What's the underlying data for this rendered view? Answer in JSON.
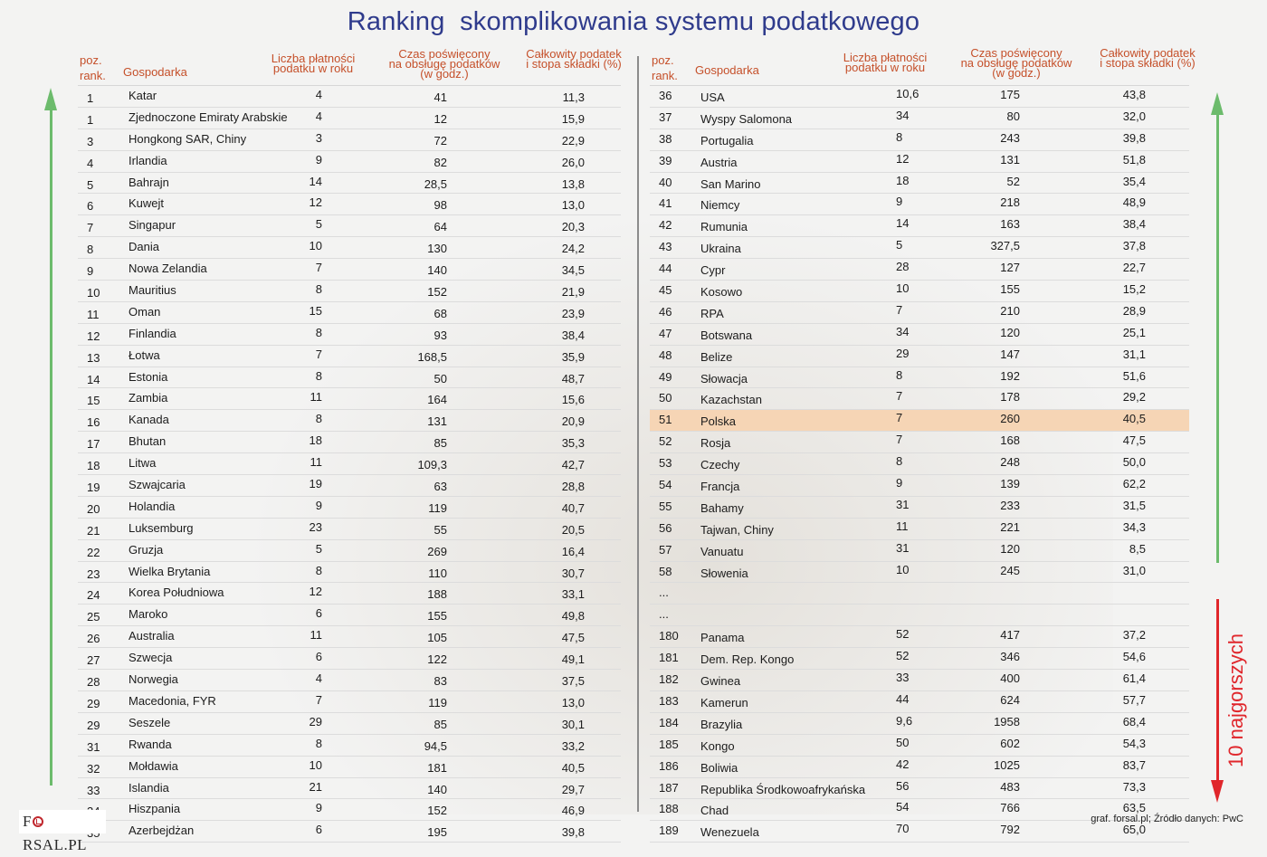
{
  "title": "Ranking  skomplikowania systemu podatkowego",
  "headers": {
    "rank": [
      "poz.",
      "rank."
    ],
    "name": "Gospodarka",
    "payments": [
      "Liczba płatności",
      "podatku w roku"
    ],
    "time": [
      "Czas poświęcony",
      "na obsługę podatków",
      "(w godz.)"
    ],
    "tax": [
      "Całkowity podatek",
      "i stopa składki (%)"
    ]
  },
  "colors": {
    "title": "#2f3b8c",
    "header": "#c5502a",
    "highlight": "#f6d5b5",
    "best_arrow": "#6cbb6c",
    "worst_arrow": "#e0262b"
  },
  "left_table": [
    {
      "rank": "1",
      "name": "Katar",
      "payments": "4",
      "time": "41",
      "tax": "11,3"
    },
    {
      "rank": "1",
      "name": "Zjednoczone Emiraty Arabskie",
      "payments": "4",
      "time": "12",
      "tax": "15,9"
    },
    {
      "rank": "3",
      "name": "Hongkong SAR, Chiny",
      "payments": "3",
      "time": "72",
      "tax": "22,9"
    },
    {
      "rank": "4",
      "name": "Irlandia",
      "payments": "9",
      "time": "82",
      "tax": "26,0"
    },
    {
      "rank": "5",
      "name": "Bahrajn",
      "payments": "14",
      "time": "28,5",
      "tax": "13,8"
    },
    {
      "rank": "6",
      "name": "Kuwejt",
      "payments": "12",
      "time": "98",
      "tax": "13,0"
    },
    {
      "rank": "7",
      "name": "Singapur",
      "payments": "5",
      "time": "64",
      "tax": "20,3"
    },
    {
      "rank": "8",
      "name": "Dania",
      "payments": "10",
      "time": "130",
      "tax": "24,2"
    },
    {
      "rank": "9",
      "name": "Nowa Zelandia",
      "payments": "7",
      "time": "140",
      "tax": "34,5"
    },
    {
      "rank": "10",
      "name": "Mauritius",
      "payments": "8",
      "time": "152",
      "tax": "21,9"
    },
    {
      "rank": "11",
      "name": "Oman",
      "payments": "15",
      "time": "68",
      "tax": "23,9"
    },
    {
      "rank": "12",
      "name": "Finlandia",
      "payments": "8",
      "time": "93",
      "tax": "38,4"
    },
    {
      "rank": "13",
      "name": "Łotwa",
      "payments": "7",
      "time": "168,5",
      "tax": "35,9"
    },
    {
      "rank": "14",
      "name": "Estonia",
      "payments": "8",
      "time": "50",
      "tax": "48,7"
    },
    {
      "rank": "15",
      "name": "Zambia",
      "payments": "11",
      "time": "164",
      "tax": "15,6"
    },
    {
      "rank": "16",
      "name": "Kanada",
      "payments": "8",
      "time": "131",
      "tax": "20,9"
    },
    {
      "rank": "17",
      "name": "Bhutan",
      "payments": "18",
      "time": "85",
      "tax": "35,3"
    },
    {
      "rank": "18",
      "name": "Litwa",
      "payments": "11",
      "time": "109,3",
      "tax": "42,7"
    },
    {
      "rank": "19",
      "name": "Szwajcaria",
      "payments": "19",
      "time": "63",
      "tax": "28,8"
    },
    {
      "rank": "20",
      "name": "Holandia",
      "payments": "9",
      "time": "119",
      "tax": "40,7"
    },
    {
      "rank": "21",
      "name": "Luksemburg",
      "payments": "23",
      "time": "55",
      "tax": "20,5"
    },
    {
      "rank": "22",
      "name": "Gruzja",
      "payments": "5",
      "time": "269",
      "tax": "16,4"
    },
    {
      "rank": "23",
      "name": "Wielka Brytania",
      "payments": "8",
      "time": "110",
      "tax": "30,7"
    },
    {
      "rank": "24",
      "name": "Korea Południowa",
      "payments": "12",
      "time": "188",
      "tax": "33,1"
    },
    {
      "rank": "25",
      "name": "Maroko",
      "payments": "6",
      "time": "155",
      "tax": "49,8"
    },
    {
      "rank": "26",
      "name": "Australia",
      "payments": "11",
      "time": "105",
      "tax": "47,5"
    },
    {
      "rank": "27",
      "name": "Szwecja",
      "payments": "6",
      "time": "122",
      "tax": "49,1"
    },
    {
      "rank": "28",
      "name": "Norwegia",
      "payments": "4",
      "time": "83",
      "tax": "37,5"
    },
    {
      "rank": "29",
      "name": "Macedonia, FYR",
      "payments": "7",
      "time": "119",
      "tax": "13,0"
    },
    {
      "rank": "29",
      "name": "Seszele",
      "payments": "29",
      "time": "85",
      "tax": "30,1"
    },
    {
      "rank": "31",
      "name": "Rwanda",
      "payments": "8",
      "time": "94,5",
      "tax": "33,2"
    },
    {
      "rank": "32",
      "name": "Mołdawia",
      "payments": "10",
      "time": "181",
      "tax": "40,5"
    },
    {
      "rank": "33",
      "name": "Islandia",
      "payments": "21",
      "time": "140",
      "tax": "29,7"
    },
    {
      "rank": "34",
      "name": "Hiszpania",
      "payments": "9",
      "time": "152",
      "tax": "46,9"
    },
    {
      "rank": "35",
      "name": "Azerbejdżan",
      "payments": "6",
      "time": "195",
      "tax": "39,8"
    }
  ],
  "right_table": [
    {
      "rank": "36",
      "name": "USA",
      "payments": "10,6",
      "time": "175",
      "tax": "43,8"
    },
    {
      "rank": "37",
      "name": "Wyspy Salomona",
      "payments": "34",
      "time": "80",
      "tax": "32,0"
    },
    {
      "rank": "38",
      "name": "Portugalia",
      "payments": "8",
      "time": "243",
      "tax": "39,8"
    },
    {
      "rank": "39",
      "name": "Austria",
      "payments": "12",
      "time": "131",
      "tax": "51,8"
    },
    {
      "rank": "40",
      "name": "San Marino",
      "payments": "18",
      "time": "52",
      "tax": "35,4"
    },
    {
      "rank": "41",
      "name": "Niemcy",
      "payments": "9",
      "time": "218",
      "tax": "48,9"
    },
    {
      "rank": "42",
      "name": "Rumunia",
      "payments": "14",
      "time": "163",
      "tax": "38,4"
    },
    {
      "rank": "43",
      "name": "Ukraina",
      "payments": "5",
      "time": "327,5",
      "tax": "37,8"
    },
    {
      "rank": "44",
      "name": "Cypr",
      "payments": "28",
      "time": "127",
      "tax": "22,7"
    },
    {
      "rank": "45",
      "name": "Kosowo",
      "payments": "10",
      "time": "155",
      "tax": "15,2"
    },
    {
      "rank": "46",
      "name": "RPA",
      "payments": "7",
      "time": "210",
      "tax": "28,9"
    },
    {
      "rank": "47",
      "name": "Botswana",
      "payments": "34",
      "time": "120",
      "tax": "25,1"
    },
    {
      "rank": "48",
      "name": "Belize",
      "payments": "29",
      "time": "147",
      "tax": "31,1"
    },
    {
      "rank": "49",
      "name": "Słowacja",
      "payments": "8",
      "time": "192",
      "tax": "51,6"
    },
    {
      "rank": "50",
      "name": "Kazachstan",
      "payments": "7",
      "time": "178",
      "tax": "29,2"
    },
    {
      "rank": "51",
      "name": "Polska",
      "payments": "7",
      "time": "260",
      "tax": "40,5",
      "highlight": true
    },
    {
      "rank": "52",
      "name": "Rosja",
      "payments": "7",
      "time": "168",
      "tax": "47,5"
    },
    {
      "rank": "53",
      "name": "Czechy",
      "payments": "8",
      "time": "248",
      "tax": "50,0"
    },
    {
      "rank": "54",
      "name": "Francja",
      "payments": "9",
      "time": "139",
      "tax": "62,2"
    },
    {
      "rank": "55",
      "name": "Bahamy",
      "payments": "31",
      "time": "233",
      "tax": "31,5"
    },
    {
      "rank": "56",
      "name": "Tajwan, Chiny",
      "payments": "11",
      "time": "221",
      "tax": "34,3"
    },
    {
      "rank": "57",
      "name": "Vanuatu",
      "payments": "31",
      "time": "120",
      "tax": "8,5"
    },
    {
      "rank": "58",
      "name": "Słowenia",
      "payments": "10",
      "time": "245",
      "tax": "31,0"
    },
    {
      "rank": "...",
      "name": "",
      "payments": "",
      "time": "",
      "tax": ""
    },
    {
      "rank": "...",
      "name": "",
      "payments": "",
      "time": "",
      "tax": ""
    },
    {
      "rank": "180",
      "name": "Panama",
      "payments": "52",
      "time": "417",
      "tax": "37,2"
    },
    {
      "rank": "181",
      "name": "Dem. Rep. Kongo",
      "payments": "52",
      "time": "346",
      "tax": "54,6"
    },
    {
      "rank": "182",
      "name": "Gwinea",
      "payments": "33",
      "time": "400",
      "tax": "61,4"
    },
    {
      "rank": "183",
      "name": "Kamerun",
      "payments": "44",
      "time": "624",
      "tax": "57,7"
    },
    {
      "rank": "184",
      "name": "Brazylia",
      "payments": "9,6",
      "time": "1958",
      "tax": "68,4"
    },
    {
      "rank": "185",
      "name": "Kongo",
      "payments": "50",
      "time": "602",
      "tax": "54,3"
    },
    {
      "rank": "186",
      "name": "Boliwia",
      "payments": "42",
      "time": "1025",
      "tax": "83,7"
    },
    {
      "rank": "187",
      "name": "Republika Środkowoafrykańska",
      "payments": "56",
      "time": "483",
      "tax": "73,3"
    },
    {
      "rank": "188",
      "name": "Chad",
      "payments": "54",
      "time": "766",
      "tax": "63,5"
    },
    {
      "rank": "189",
      "name": "Wenezuela",
      "payments": "70",
      "time": "792",
      "tax": "65,0"
    }
  ],
  "worst_label": "10 najgorszych",
  "logo": {
    "pre": "F",
    "post": "RSAL.PL"
  },
  "source": "graf. forsal.pl; Źródło danych: PwC"
}
